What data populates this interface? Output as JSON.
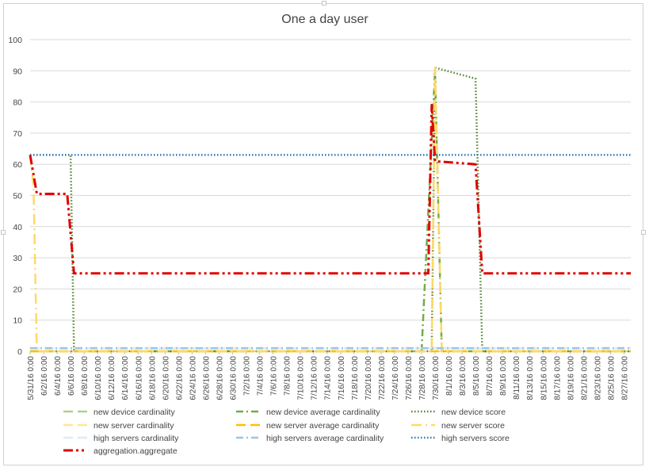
{
  "chart_data": {
    "type": "line",
    "title": "One a day user",
    "xlabel": "",
    "ylabel": "",
    "ylim": [
      0,
      100
    ],
    "yticks": [
      0,
      10,
      20,
      30,
      40,
      50,
      60,
      70,
      80,
      90,
      100
    ],
    "xlim": [
      "5/31/16 0:00",
      "8/28/16 0:00"
    ],
    "xtick_labels": [
      "5/31/16 0:00",
      "6/2/16 0:00",
      "6/4/16 0:00",
      "6/6/16 0:00",
      "6/8/16 0:00",
      "6/10/16 0:00",
      "6/12/16 0:00",
      "6/14/16 0:00",
      "6/16/16 0:00",
      "6/18/16 0:00",
      "6/20/16 0:00",
      "6/22/16 0:00",
      "6/24/16 0:00",
      "6/26/16 0:00",
      "6/28/16 0:00",
      "6/30/16 0:00",
      "7/2/16 0:00",
      "7/4/16 0:00",
      "7/6/16 0:00",
      "7/8/16 0:00",
      "7/10/16 0:00",
      "7/12/16 0:00",
      "7/14/16 0:00",
      "7/16/16 0:00",
      "7/18/16 0:00",
      "7/20/16 0:00",
      "7/22/16 0:00",
      "7/24/16 0:00",
      "7/26/16 0:00",
      "7/28/16 0:00",
      "7/30/16 0:00",
      "8/1/16 0:00",
      "8/3/16 0:00",
      "8/5/16 0:00",
      "8/7/16 0:00",
      "8/9/16 0:00",
      "8/11/16 0:00",
      "8/13/16 0:00",
      "8/15/16 0:00",
      "8/17/16 0:00",
      "8/19/16 0:00",
      "8/21/16 0:00",
      "8/23/16 0:00",
      "8/25/16 0:00",
      "8/27/16 0:00"
    ],
    "grid": true,
    "legend_position": "bottom",
    "series": [
      {
        "name": "new device cardinality",
        "color": "#a9d18e",
        "dash": "long-dash",
        "points": [
          [
            "5/31/16 0:00",
            1
          ],
          [
            "8/28/16 0:00",
            1
          ]
        ]
      },
      {
        "name": "new device average cardinality",
        "color": "#70ad47",
        "dash": "dash-dot",
        "points": [
          [
            "5/31/16 0:00",
            0
          ],
          [
            "7/28/16 0:00",
            0
          ],
          [
            "7/30/16 0:00",
            90
          ],
          [
            "7/31/16 0:00",
            0
          ],
          [
            "8/28/16 0:00",
            0
          ]
        ]
      },
      {
        "name": "new device score",
        "color": "#548235",
        "dash": "dot",
        "points": [
          [
            "5/31/16 0:00",
            63
          ],
          [
            "6/6/16 0:00",
            63
          ],
          [
            "6/6/16 12:00",
            0
          ],
          [
            "7/29/16 12:00",
            0
          ],
          [
            "7/30/16 0:00",
            91
          ],
          [
            "8/5/16 0:00",
            87.5
          ],
          [
            "8/6/16 0:00",
            0
          ],
          [
            "8/28/16 0:00",
            0
          ]
        ]
      },
      {
        "name": "new server cardinality",
        "color": "#ffe699",
        "dash": "long-dash",
        "points": [
          [
            "5/31/16 0:00",
            0
          ],
          [
            "8/28/16 0:00",
            0
          ]
        ]
      },
      {
        "name": "new server average cardinality",
        "color": "#ffc000",
        "dash": "long-dash",
        "points": [
          [
            "5/31/16 0:00",
            0
          ],
          [
            "8/28/16 0:00",
            0
          ]
        ]
      },
      {
        "name": "new server score",
        "color": "#ffd966",
        "dash": "long-dash-dot",
        "points": [
          [
            "5/31/16 0:00",
            63
          ],
          [
            "5/31/16 12:00",
            53
          ],
          [
            "6/1/16 0:00",
            0
          ],
          [
            "7/29/16 12:00",
            0
          ],
          [
            "7/30/16 0:00",
            91
          ],
          [
            "7/31/16 0:00",
            0
          ],
          [
            "8/28/16 0:00",
            0
          ]
        ]
      },
      {
        "name": "high servers cardinality",
        "color": "#deebf7",
        "dash": "long-dash",
        "points": [
          [
            "5/31/16 0:00",
            1
          ],
          [
            "8/28/16 0:00",
            1
          ]
        ]
      },
      {
        "name": "high servers average cardinality",
        "color": "#9dc3e6",
        "dash": "dash-dot",
        "points": [
          [
            "5/31/16 0:00",
            1
          ],
          [
            "8/28/16 0:00",
            1
          ]
        ]
      },
      {
        "name": "high servers score",
        "color": "#2e75b6",
        "dash": "dot",
        "points": [
          [
            "5/31/16 0:00",
            63
          ],
          [
            "8/28/16 0:00",
            63
          ]
        ]
      },
      {
        "name": "aggregation.aggregate",
        "color": "#e00000",
        "dash": "long-dash-dot-dot",
        "points": [
          [
            "5/31/16 0:00",
            63
          ],
          [
            "6/1/16 0:00",
            50.5
          ],
          [
            "6/5/16 12:00",
            50.5
          ],
          [
            "6/6/16 12:00",
            25
          ],
          [
            "7/29/16 0:00",
            25
          ],
          [
            "7/29/16 12:00",
            79
          ],
          [
            "7/30/16 0:00",
            61
          ],
          [
            "8/5/16 0:00",
            60
          ],
          [
            "8/6/16 0:00",
            25
          ],
          [
            "8/28/16 0:00",
            25
          ]
        ]
      }
    ]
  }
}
